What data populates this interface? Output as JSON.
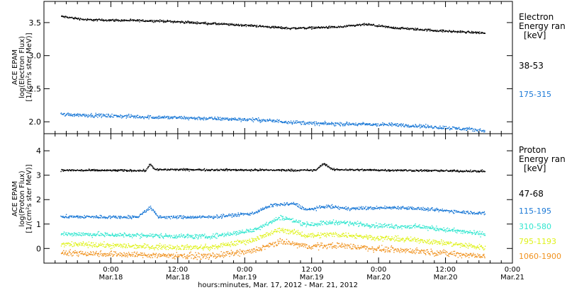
{
  "colors": {
    "background": "#ffffff",
    "axis": "#000000",
    "black": "#000000",
    "blue": "#1a78d6",
    "cyan": "#30e6cf",
    "yellow": "#dff21a",
    "orange": "#f0921e"
  },
  "chart_data": [
    {
      "type": "scatter",
      "panel": "electron",
      "ylabel": [
        "ACE EPAM",
        "log(Electron Flux)",
        "[1/(cm²s ster MeV)]"
      ],
      "legend_title": [
        "Electron",
        "Energy ran",
        "[keV]"
      ],
      "ylim": [
        1.82,
        3.82
      ],
      "yticks": [
        "2.0",
        "2.5",
        "3.0",
        "3.5"
      ],
      "ytick_values": [
        2.0,
        2.5,
        3.0,
        3.5
      ],
      "x": {
        "start": "2012-03-17 12:00",
        "end": "2012-03-21 00:00",
        "data_start": "2012-03-17 15:00",
        "data_end": "2012-03-20 19:00"
      },
      "series": [
        {
          "name": "38-53",
          "color": "#000000",
          "jitter": 0.012,
          "keypoints": [
            [
              0,
              3.6
            ],
            [
              6,
              3.55
            ],
            [
              24,
              3.53
            ],
            [
              45,
              3.46
            ],
            [
              54,
              3.42
            ],
            [
              66,
              3.44
            ],
            [
              72,
              3.48
            ],
            [
              78,
              3.43
            ],
            [
              90,
              3.38
            ],
            [
              100,
              3.35
            ]
          ]
        },
        {
          "name": "175-315",
          "color": "#1a78d6",
          "jitter": 0.02,
          "keypoints": [
            [
              0,
              2.12
            ],
            [
              20,
              2.08
            ],
            [
              45,
              2.04
            ],
            [
              60,
              1.98
            ],
            [
              80,
              1.96
            ],
            [
              95,
              1.9
            ],
            [
              100,
              1.87
            ]
          ]
        }
      ]
    },
    {
      "type": "scatter",
      "panel": "proton",
      "ylabel": [
        "ACE EPAM",
        "log(Proton Flux)",
        "[1/(cm²s ster MeV)]"
      ],
      "legend_title": [
        "Proton",
        "Energy ran",
        "[keV]"
      ],
      "ylim": [
        -0.6,
        4.7
      ],
      "yticks": [
        "0",
        "1",
        "2",
        "3",
        "4"
      ],
      "ytick_values": [
        0,
        1,
        2,
        3,
        4
      ],
      "x": {
        "start": "2012-03-17 12:00",
        "end": "2012-03-21 00:00",
        "data_start": "2012-03-17 15:00",
        "data_end": "2012-03-20 19:00"
      },
      "series": [
        {
          "name": "47-68",
          "color": "#000000",
          "jitter": 0.03,
          "keypoints": [
            [
              0,
              3.22
            ],
            [
              20,
              3.21
            ],
            [
              21,
              3.5
            ],
            [
              22,
              3.25
            ],
            [
              60,
              3.22
            ],
            [
              62,
              3.5
            ],
            [
              64,
              3.25
            ],
            [
              100,
              3.18
            ]
          ]
        },
        {
          "name": "115-195",
          "color": "#1a78d6",
          "jitter": 0.05,
          "keypoints": [
            [
              0,
              1.32
            ],
            [
              18,
              1.3
            ],
            [
              21,
              1.7
            ],
            [
              23,
              1.3
            ],
            [
              35,
              1.3
            ],
            [
              45,
              1.45
            ],
            [
              50,
              1.8
            ],
            [
              55,
              1.85
            ],
            [
              58,
              1.6
            ],
            [
              63,
              1.75
            ],
            [
              67,
              1.65
            ],
            [
              80,
              1.7
            ],
            [
              100,
              1.45
            ]
          ]
        },
        {
          "name": "310-580",
          "color": "#30e6cf",
          "jitter": 0.07,
          "keypoints": [
            [
              0,
              0.62
            ],
            [
              20,
              0.55
            ],
            [
              35,
              0.5
            ],
            [
              45,
              0.75
            ],
            [
              52,
              1.3
            ],
            [
              58,
              1.0
            ],
            [
              65,
              1.1
            ],
            [
              75,
              0.95
            ],
            [
              85,
              0.9
            ],
            [
              100,
              0.6
            ]
          ]
        },
        {
          "name": "795-1193",
          "color": "#dff21a",
          "jitter": 0.08,
          "keypoints": [
            [
              0,
              0.2
            ],
            [
              20,
              0.1
            ],
            [
              35,
              0.05
            ],
            [
              45,
              0.35
            ],
            [
              52,
              0.8
            ],
            [
              58,
              0.55
            ],
            [
              65,
              0.6
            ],
            [
              75,
              0.45
            ],
            [
              85,
              0.35
            ],
            [
              100,
              0.05
            ]
          ]
        },
        {
          "name": "1060-1900",
          "color": "#f0921e",
          "jitter": 0.09,
          "keypoints": [
            [
              0,
              -0.15
            ],
            [
              20,
              -0.25
            ],
            [
              35,
              -0.3
            ],
            [
              45,
              -0.1
            ],
            [
              52,
              0.3
            ],
            [
              58,
              0.1
            ],
            [
              65,
              0.15
            ],
            [
              75,
              0.0
            ],
            [
              85,
              -0.1
            ],
            [
              100,
              -0.3
            ]
          ]
        }
      ]
    }
  ],
  "x_ticks": [
    {
      "time": "0:00",
      "date": "Mar.18",
      "hours": 12
    },
    {
      "time": "12:00",
      "date": "Mar.18",
      "hours": 24
    },
    {
      "time": "0:00",
      "date": "Mar.19",
      "hours": 36
    },
    {
      "time": "12:00",
      "date": "Mar.19",
      "hours": 48
    },
    {
      "time": "0:00",
      "date": "Mar.20",
      "hours": 60
    },
    {
      "time": "12:00",
      "date": "Mar.20",
      "hours": 72
    },
    {
      "time": "0:00",
      "date": "Mar.21",
      "hours": 84
    }
  ],
  "xlabel": "hours:minutes, Mar. 17, 2012 - Mar. 21, 2012"
}
